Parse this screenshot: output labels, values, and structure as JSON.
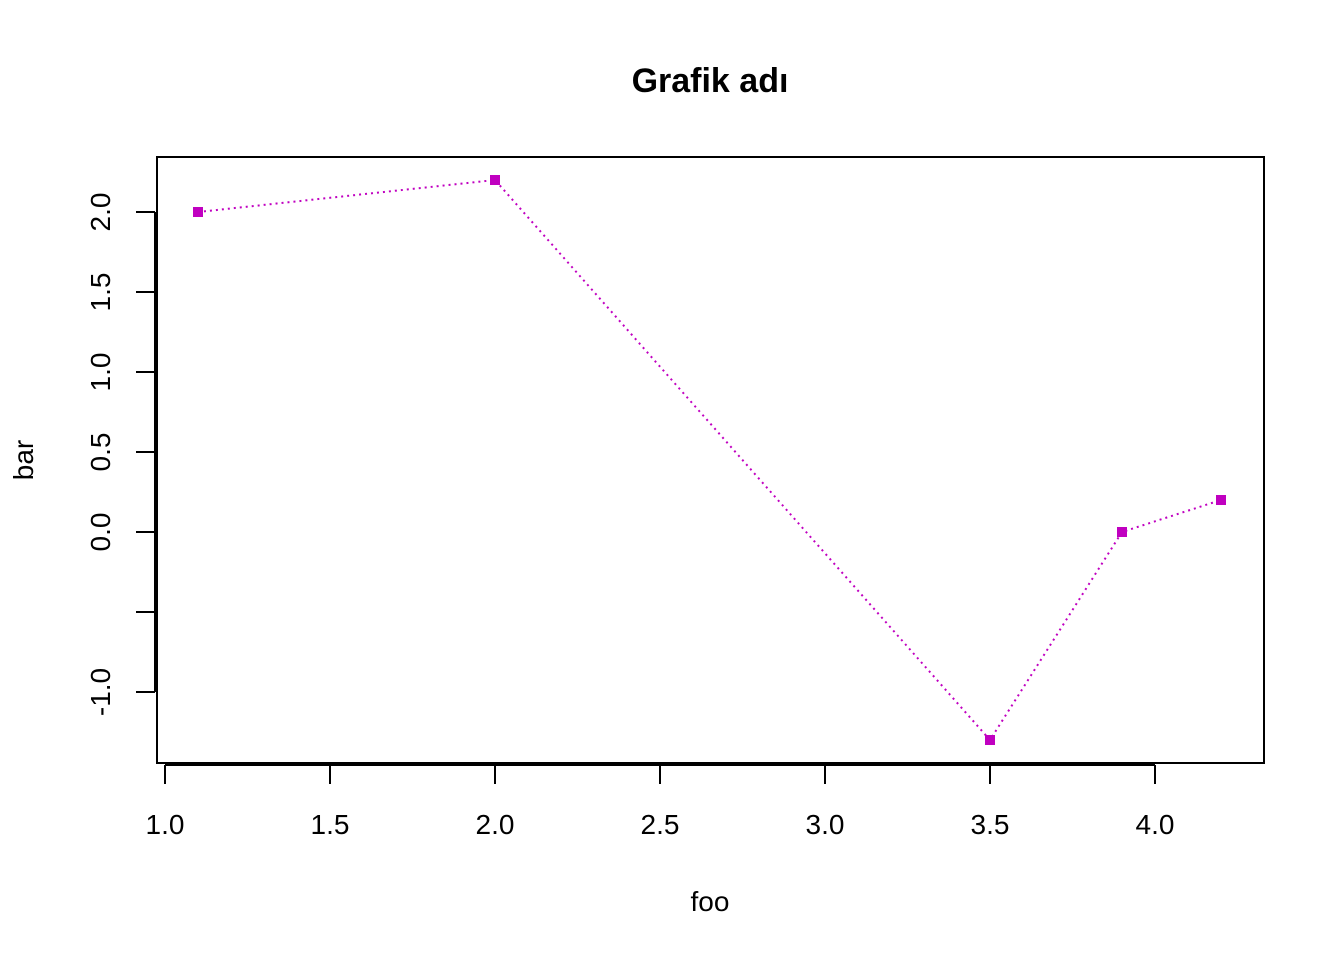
{
  "chart_data": {
    "type": "line",
    "title": "Grafik adı",
    "xlabel": "foo",
    "ylabel": "bar",
    "xlim": [
      1.1,
      4.2
    ],
    "ylim": [
      -1.3,
      2.2
    ],
    "x_ticks": [
      1.0,
      1.5,
      2.0,
      2.5,
      3.0,
      3.5,
      4.0
    ],
    "x_tick_labels": [
      "1.0",
      "1.5",
      "2.0",
      "2.5",
      "3.0",
      "3.5",
      "4.0"
    ],
    "y_ticks": [
      -1.0,
      -0.5,
      0.0,
      0.5,
      1.0,
      1.5,
      2.0
    ],
    "y_tick_labels": [
      "-1.0",
      "",
      "0.0",
      "0.5",
      "1.0",
      "1.5",
      "2.0"
    ],
    "series": [
      {
        "x": [
          1.1,
          2.0,
          3.5,
          3.9,
          4.2
        ],
        "y": [
          2.0,
          2.2,
          -1.3,
          0.0,
          0.2
        ],
        "color": "#c000c0",
        "line_style": "dotted",
        "marker": "square"
      }
    ],
    "grid": false
  }
}
